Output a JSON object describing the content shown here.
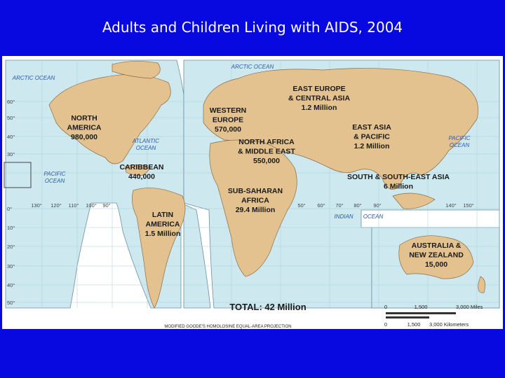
{
  "header": {
    "title": "Adults and Children Living with AIDS, 2004"
  },
  "regions": [
    {
      "lines": [
        "NORTH",
        "AMERICA",
        "980,000"
      ]
    },
    {
      "lines": [
        "WESTERN",
        "EUROPE",
        "570,000"
      ]
    },
    {
      "lines": [
        "EAST EUROPE",
        "& CENTRAL ASIA",
        "1.2 Million"
      ]
    },
    {
      "lines": [
        "NORTH AFRICA",
        "& MIDDLE EAST",
        "550,000"
      ]
    },
    {
      "lines": [
        "EAST ASIA",
        "& PACIFIC",
        "1.2 Million"
      ]
    },
    {
      "lines": [
        "CARIBBEAN",
        "440,000"
      ]
    },
    {
      "lines": [
        "SOUTH & SOUTH-EAST ASIA",
        "6 Million"
      ]
    },
    {
      "lines": [
        "SUB-SAHARAN",
        "AFRICA",
        "29.4 Million"
      ]
    },
    {
      "lines": [
        "LATIN",
        "AMERICA",
        "1.5 Million"
      ]
    },
    {
      "lines": [
        "AUSTRALIA &",
        "NEW ZEALAND",
        "15,000"
      ]
    }
  ],
  "oceans": [
    {
      "lines": [
        "ARCTIC OCEAN"
      ]
    },
    {
      "lines": [
        "ARCTIC OCEAN"
      ]
    },
    {
      "lines": [
        "ATLANTIC",
        "OCEAN"
      ]
    },
    {
      "lines": [
        "PACIFIC",
        "OCEAN"
      ]
    },
    {
      "lines": [
        "PACIFIC",
        "OCEAN"
      ]
    },
    {
      "lines": [
        "INDIAN"
      ]
    },
    {
      "lines": [
        "OCEAN"
      ]
    }
  ],
  "total": "TOTAL: 42 Million",
  "scale": {
    "miles": [
      "0",
      "1,500",
      "3,000 Miles"
    ],
    "kilometers": [
      "0",
      "1,500",
      "3,000 Kilometers"
    ]
  },
  "projection": "MODIFIED GOODE'S HOMOLOSINE EQUAL-AREA PROJECTION",
  "latitude_labels": [
    "60°",
    "50°",
    "40°",
    "30°",
    "0°",
    "10°",
    "20°",
    "30°",
    "40°",
    "50°"
  ],
  "longitude_labels": [
    "130°",
    "120°",
    "110°",
    "100°",
    "90°",
    "50°",
    "60°",
    "70°",
    "80°",
    "90°",
    "140°",
    "150°"
  ]
}
